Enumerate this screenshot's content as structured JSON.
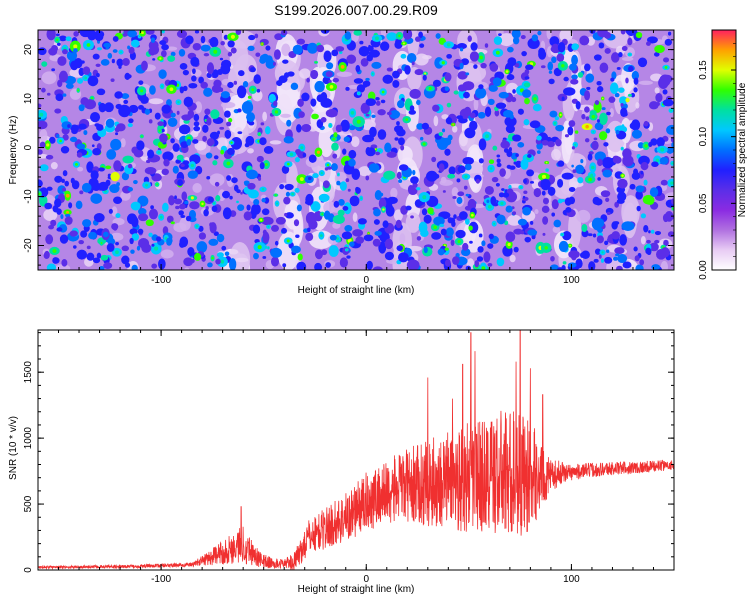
{
  "figure": {
    "title": "S199.2026.007.00.29.R09"
  },
  "chart_data": [
    {
      "type": "heatmap",
      "title": "S199.2026.007.00.29.R09",
      "xlabel": "Height of straight line (km)",
      "ylabel": "Frequency (Hz)",
      "xlim": [
        -160,
        150
      ],
      "ylim": [
        -25,
        24
      ],
      "xticks": [
        -100,
        0,
        100
      ],
      "yticks": [
        -20,
        -10,
        0,
        10,
        20
      ],
      "colorbar": {
        "label": "Normalized spectral amplitude",
        "range": [
          0.0,
          0.18
        ],
        "ticks": [
          "0.00",
          "0.05",
          "0.10",
          "0.15"
        ],
        "tick_values": [
          0.0,
          0.05,
          0.1,
          0.15
        ],
        "colormap": [
          "#ffffff",
          "#e8ccf4",
          "#b070e0",
          "#8a2be2",
          "#5b2ee8",
          "#2020ff",
          "#0070ff",
          "#00c8ff",
          "#00e0a0",
          "#30ff00",
          "#e0ff00",
          "#ffa000",
          "#ff2060"
        ]
      },
      "pale_band_heights_km": [
        -62,
        -37,
        -20,
        20,
        50,
        100,
        125
      ]
    },
    {
      "type": "line",
      "xlabel": "Height of straight line (km)",
      "ylabel": "SNR (10 * v/v)",
      "xlim": [
        -160,
        150
      ],
      "ylim": [
        0,
        1820
      ],
      "xticks": [
        -100,
        0,
        100
      ],
      "yticks": [
        0,
        500,
        1000,
        1500
      ],
      "series": [
        {
          "name": "SNR",
          "color": "#f03030",
          "envelope": {
            "x": [
              -160,
              -120,
              -85,
              -72,
              -60,
              -52,
              -45,
              -35,
              -28,
              -18,
              -8,
              0,
              10,
              20,
              30,
              40,
              50,
              60,
              70,
              80,
              88,
              95,
              100,
              110,
              120,
              135,
              150
            ],
            "y": [
              20,
              25,
              40,
              120,
              200,
              80,
              45,
              60,
              250,
              330,
              420,
              520,
              590,
              640,
              660,
              680,
              700,
              720,
              740,
              720,
              700,
              740,
              740,
              760,
              770,
              780,
              800
            ]
          },
          "spread": {
            "x": [
              -160,
              -85,
              -72,
              -60,
              -52,
              -40,
              -30,
              -15,
              0,
              20,
              40,
              60,
              70,
              80,
              85,
              90,
              100,
              150
            ],
            "y": [
              10,
              15,
              80,
              150,
              60,
              30,
              120,
              180,
              220,
              280,
              380,
              460,
              500,
              450,
              250,
              120,
              60,
              40
            ]
          },
          "peaks": [
            {
              "x": -61,
              "y": 480
            },
            {
              "x": 51,
              "y": 1800
            },
            {
              "x": 53,
              "y": 1660
            },
            {
              "x": 47,
              "y": 1560
            },
            {
              "x": 75,
              "y": 1820
            },
            {
              "x": 73,
              "y": 1580
            },
            {
              "x": 80,
              "y": 1530
            },
            {
              "x": 30,
              "y": 1460
            },
            {
              "x": 42,
              "y": 1300
            },
            {
              "x": 86,
              "y": 1330
            }
          ]
        }
      ]
    }
  ]
}
